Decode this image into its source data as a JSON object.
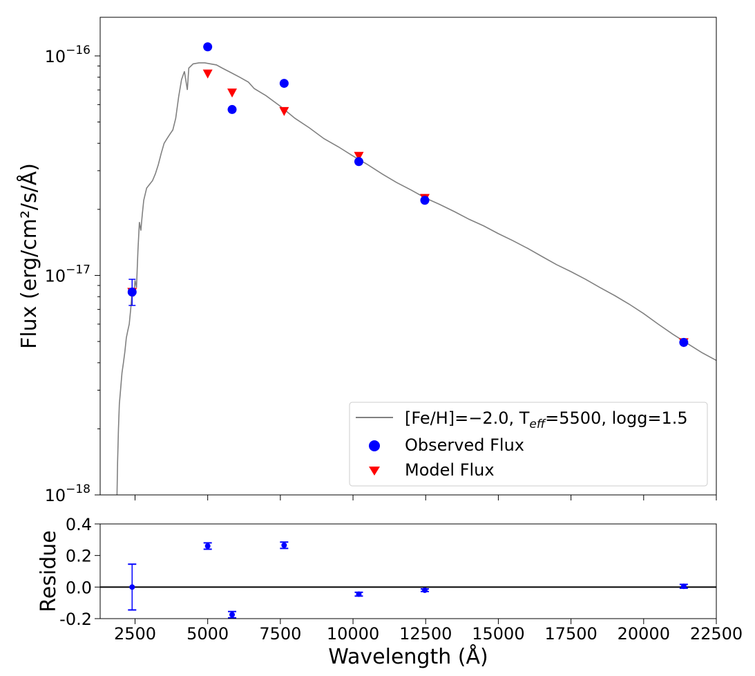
{
  "chart_data": [
    {
      "type": "scatter",
      "panel": "sed",
      "ylabel": "Flux (erg/cm²/s/Å)",
      "yscale": "log",
      "xlim": [
        1300,
        22500
      ],
      "ylim": [
        1e-18,
        1.5e-16
      ],
      "ytick_labels": [
        {
          "value": 1e-16,
          "base": "10",
          "exp": "−16"
        },
        {
          "value": 1e-17,
          "base": "10",
          "exp": "−17"
        },
        {
          "value": 1e-18,
          "base": "10",
          "exp": "−18"
        }
      ],
      "legend": {
        "placement": "lower right",
        "model_label": "[Fe/H]=−2.0, T",
        "model_label_sub": "eff",
        "model_label_tail": "=5500, logg=1.5",
        "observed_label": "Observed Flux",
        "modelflux_label": "Model Flux"
      },
      "model_curve": {
        "name": "[Fe/H]=−2.0, Teff=5500, logg=1.5",
        "color": "#808080",
        "points": [
          [
            1880,
            1e-18
          ],
          [
            1900,
            1.4e-18
          ],
          [
            1930,
            2e-18
          ],
          [
            1960,
            2.6e-18
          ],
          [
            2000,
            3e-18
          ],
          [
            2050,
            3.6e-18
          ],
          [
            2100,
            4e-18
          ],
          [
            2150,
            4.5e-18
          ],
          [
            2200,
            5.2e-18
          ],
          [
            2250,
            5.6e-18
          ],
          [
            2300,
            6e-18
          ],
          [
            2350,
            7e-18
          ],
          [
            2400,
            8.5e-18
          ],
          [
            2450,
            8e-18
          ],
          [
            2500,
            9.5e-18
          ],
          [
            2550,
            8.8e-18
          ],
          [
            2600,
            1.3e-17
          ],
          [
            2650,
            1.75e-17
          ],
          [
            2700,
            1.6e-17
          ],
          [
            2750,
            1.9e-17
          ],
          [
            2800,
            2.2e-17
          ],
          [
            2900,
            2.5e-17
          ],
          [
            3000,
            2.6e-17
          ],
          [
            3100,
            2.7e-17
          ],
          [
            3200,
            2.9e-17
          ],
          [
            3300,
            3.2e-17
          ],
          [
            3400,
            3.6e-17
          ],
          [
            3500,
            4e-17
          ],
          [
            3600,
            4.2e-17
          ],
          [
            3700,
            4.4e-17
          ],
          [
            3800,
            4.6e-17
          ],
          [
            3900,
            5.2e-17
          ],
          [
            4000,
            6.5e-17
          ],
          [
            4100,
            7.8e-17
          ],
          [
            4200,
            8.5e-17
          ],
          [
            4300,
            7e-17
          ],
          [
            4350,
            8.8e-17
          ],
          [
            4500,
            9.2e-17
          ],
          [
            4700,
            9.3e-17
          ],
          [
            4900,
            9.3e-17
          ],
          [
            5100,
            9.2e-17
          ],
          [
            5300,
            9.1e-17
          ],
          [
            5500,
            8.8e-17
          ],
          [
            5800,
            8.4e-17
          ],
          [
            6100,
            8e-17
          ],
          [
            6400,
            7.6e-17
          ],
          [
            6600,
            7.1e-17
          ],
          [
            7000,
            6.6e-17
          ],
          [
            7500,
            5.9e-17
          ],
          [
            8000,
            5.2e-17
          ],
          [
            8500,
            4.7e-17
          ],
          [
            9000,
            4.2e-17
          ],
          [
            9500,
            3.85e-17
          ],
          [
            10000,
            3.5e-17
          ],
          [
            10500,
            3.2e-17
          ],
          [
            11000,
            2.9e-17
          ],
          [
            11500,
            2.65e-17
          ],
          [
            12000,
            2.45e-17
          ],
          [
            12500,
            2.25e-17
          ],
          [
            13000,
            2.1e-17
          ],
          [
            13500,
            1.95e-17
          ],
          [
            14000,
            1.8e-17
          ],
          [
            14500,
            1.68e-17
          ],
          [
            15000,
            1.55e-17
          ],
          [
            15500,
            1.44e-17
          ],
          [
            16000,
            1.33e-17
          ],
          [
            16500,
            1.22e-17
          ],
          [
            17000,
            1.12e-17
          ],
          [
            17500,
            1.04e-17
          ],
          [
            18000,
            9.6e-18
          ],
          [
            18500,
            8.8e-18
          ],
          [
            19000,
            8.1e-18
          ],
          [
            19500,
            7.4e-18
          ],
          [
            20000,
            6.7e-18
          ],
          [
            20500,
            6e-18
          ],
          [
            21000,
            5.4e-18
          ],
          [
            21500,
            4.9e-18
          ],
          [
            22000,
            4.45e-18
          ],
          [
            22500,
            4.1e-18
          ]
        ]
      },
      "series": [
        {
          "name": "Observed Flux",
          "marker": "circle",
          "color": "#0000ff",
          "points": [
            {
              "x": 2400,
              "y": 8.4e-18,
              "err_lo": 7.3e-18,
              "err_hi": 9.6e-18
            },
            {
              "x": 5000,
              "y": 1.1e-16
            },
            {
              "x": 5840,
              "y": 5.7e-17
            },
            {
              "x": 7630,
              "y": 7.5e-17
            },
            {
              "x": 10200,
              "y": 3.3e-17
            },
            {
              "x": 12470,
              "y": 2.2e-17
            },
            {
              "x": 21380,
              "y": 4.95e-18
            }
          ]
        },
        {
          "name": "Model Flux",
          "marker": "triangle_down",
          "color": "#ff0000",
          "points": [
            {
              "x": 2400,
              "y": 8.4e-18
            },
            {
              "x": 5000,
              "y": 8.3e-17
            },
            {
              "x": 5840,
              "y": 6.8e-17
            },
            {
              "x": 7630,
              "y": 5.6e-17
            },
            {
              "x": 10200,
              "y": 3.5e-17
            },
            {
              "x": 12470,
              "y": 2.25e-17
            },
            {
              "x": 21380,
              "y": 4.95e-18
            }
          ]
        }
      ]
    },
    {
      "type": "scatter",
      "panel": "residue",
      "xlabel": "Wavelength (Å)",
      "ylabel": "Residue",
      "xlim": [
        1300,
        22500
      ],
      "ylim": [
        -0.2,
        0.4
      ],
      "xticks": [
        2500,
        5000,
        7500,
        10000,
        12500,
        15000,
        17500,
        20000,
        22500
      ],
      "xtick_labels": [
        "2500",
        "5000",
        "7500",
        "10000",
        "12500",
        "15000",
        "17500",
        "20000",
        "22500"
      ],
      "yticks": [
        -0.2,
        0.0,
        0.2,
        0.4
      ],
      "ytick_labels": [
        "-0.2",
        "0.0",
        "0.2",
        "0.4"
      ],
      "zero_line": 0,
      "series": [
        {
          "name": "Residue",
          "color": "#0000ff",
          "points": [
            {
              "x": 2400,
              "y": 0.0,
              "err": 0.145
            },
            {
              "x": 5000,
              "y": 0.26,
              "err": 0.02
            },
            {
              "x": 5840,
              "y": -0.175,
              "err": 0.02
            },
            {
              "x": 7630,
              "y": 0.265,
              "err": 0.02
            },
            {
              "x": 10200,
              "y": -0.045,
              "err": 0.012
            },
            {
              "x": 12470,
              "y": -0.02,
              "err": 0.008
            },
            {
              "x": 21380,
              "y": 0.005,
              "err": 0.012
            }
          ]
        }
      ]
    }
  ]
}
